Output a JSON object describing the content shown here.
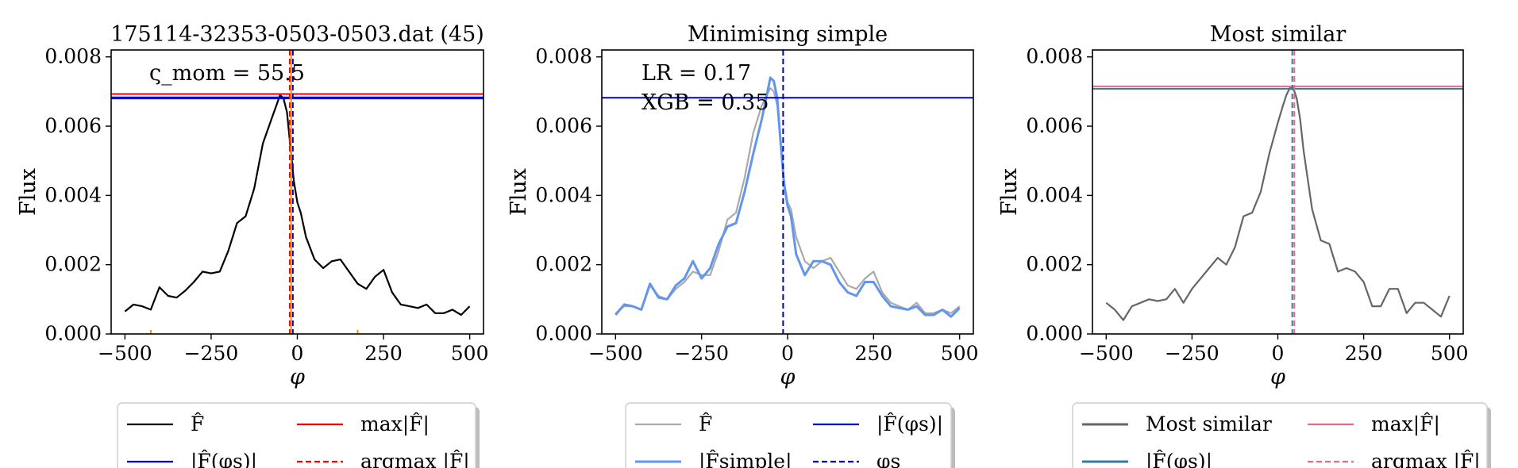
{
  "figure_title": "",
  "chart_data": [
    {
      "type": "line",
      "title": "175114-32353-0503-0503.dat (45)",
      "xlabel": "φ",
      "ylabel": "Flux",
      "xlim": [
        -540,
        540
      ],
      "ylim": [
        0,
        0.0082
      ],
      "xticks": [
        -500,
        -250,
        0,
        250,
        500
      ],
      "xtick_labels": [
        "−500",
        "−250",
        "0",
        "250",
        "500"
      ],
      "yticks": [
        0,
        0.002,
        0.004,
        0.006,
        0.008
      ],
      "ytick_labels": [
        "0.000",
        "0.002",
        "0.004",
        "0.006",
        "0.008"
      ],
      "grid": false,
      "annotation": "ς_mom = 55.5",
      "series": [
        {
          "name": "F̂",
          "color": "#000000",
          "x": [
            -500,
            -475,
            -450,
            -425,
            -400,
            -375,
            -350,
            -325,
            -300,
            -275,
            -250,
            -225,
            -200,
            -175,
            -150,
            -125,
            -100,
            -75,
            -50,
            -40,
            -30,
            -20,
            -10,
            0,
            10,
            25,
            50,
            75,
            100,
            125,
            150,
            175,
            200,
            225,
            250,
            275,
            300,
            325,
            350,
            375,
            400,
            425,
            450,
            475,
            500
          ],
          "y": [
            0.00065,
            0.00085,
            0.0008,
            0.0007,
            0.00135,
            0.0011,
            0.00105,
            0.00125,
            0.0015,
            0.0018,
            0.00175,
            0.0018,
            0.0024,
            0.0032,
            0.0034,
            0.0042,
            0.0055,
            0.0062,
            0.0069,
            0.0068,
            0.0064,
            0.0054,
            0.0044,
            0.0038,
            0.0035,
            0.0028,
            0.00215,
            0.0019,
            0.0021,
            0.00215,
            0.0018,
            0.00145,
            0.0013,
            0.00165,
            0.00185,
            0.0012,
            0.00085,
            0.0008,
            0.00075,
            0.00085,
            0.0006,
            0.0006,
            0.0007,
            0.00055,
            0.0008
          ]
        }
      ],
      "hlines": [
        {
          "name": "max|F̂|",
          "y": 0.00693,
          "color": "#ff0000",
          "style": "solid"
        },
        {
          "name": "|F̂(φs)|",
          "y": 0.0068,
          "color": "#0000cc",
          "style": "solid"
        },
        {
          "name": "",
          "y": 0.00683,
          "color": "#0000cc",
          "style": "solid"
        }
      ],
      "vlines": [
        {
          "name": "argmax|F̂|",
          "x": -22,
          "color": "#ff0000",
          "style": "dashed"
        },
        {
          "name": "φs",
          "x": -13,
          "color": "#0000cc",
          "style": "dashed"
        },
        {
          "name": "",
          "x": -18,
          "color": "#ff8c00",
          "style": "solid"
        }
      ],
      "rug": [
        {
          "x": -425,
          "color": "#ff8c00"
        },
        {
          "x": 175,
          "color": "#ff8c00"
        }
      ],
      "legend": {
        "placement": "below",
        "cols": [
          [
            {
              "label": "F̂",
              "color": "#000000",
              "style": "solid"
            },
            {
              "label": "|F̂(φs)|",
              "color": "#0000cc",
              "style": "solid"
            }
          ],
          [
            {
              "label": "max|F̂|",
              "color": "#ff0000",
              "style": "solid"
            },
            {
              "label": "argmax |F̂|",
              "color": "#ff0000",
              "style": "dashed"
            }
          ]
        ]
      }
    },
    {
      "type": "line",
      "title": "Minimising simple",
      "xlabel": "φ",
      "ylabel": "Flux",
      "xlim": [
        -540,
        540
      ],
      "ylim": [
        0,
        0.0082
      ],
      "xticks": [
        -500,
        -250,
        0,
        250,
        500
      ],
      "xtick_labels": [
        "−500",
        "−250",
        "0",
        "250",
        "500"
      ],
      "yticks": [
        0,
        0.002,
        0.004,
        0.006,
        0.008
      ],
      "ytick_labels": [
        "0.000",
        "0.002",
        "0.004",
        "0.006",
        "0.008"
      ],
      "grid": false,
      "annotation": "LR = 0.17",
      "annotation2": "XGB = 0.35",
      "series": [
        {
          "name": "F̂",
          "color": "#aaaaaa",
          "x": [
            -500,
            -475,
            -450,
            -425,
            -400,
            -375,
            -350,
            -325,
            -300,
            -275,
            -250,
            -225,
            -200,
            -175,
            -150,
            -125,
            -100,
            -75,
            -50,
            -40,
            -30,
            -20,
            -10,
            0,
            10,
            25,
            50,
            75,
            100,
            125,
            150,
            175,
            200,
            225,
            250,
            275,
            300,
            325,
            350,
            375,
            400,
            425,
            450,
            475,
            500
          ],
          "y": [
            0.0006,
            0.0008,
            0.0008,
            0.0007,
            0.0014,
            0.0011,
            0.001,
            0.0013,
            0.0015,
            0.0018,
            0.0017,
            0.0017,
            0.0024,
            0.0033,
            0.0035,
            0.0045,
            0.0058,
            0.0066,
            0.0071,
            0.007,
            0.0066,
            0.0055,
            0.0044,
            0.0038,
            0.0036,
            0.0028,
            0.0021,
            0.0019,
            0.0021,
            0.0022,
            0.0018,
            0.0014,
            0.0013,
            0.0016,
            0.0018,
            0.0012,
            0.0009,
            0.0008,
            0.0007,
            0.0009,
            0.0006,
            0.0006,
            0.0007,
            0.0006,
            0.0008
          ]
        },
        {
          "name": "|F̂simple|",
          "color": "#6495ed",
          "x": [
            -500,
            -475,
            -450,
            -425,
            -400,
            -375,
            -350,
            -325,
            -300,
            -275,
            -250,
            -225,
            -200,
            -175,
            -150,
            -125,
            -100,
            -75,
            -50,
            -40,
            -30,
            -20,
            -10,
            0,
            10,
            25,
            50,
            75,
            100,
            125,
            150,
            175,
            200,
            225,
            250,
            275,
            300,
            325,
            350,
            375,
            400,
            425,
            450,
            475,
            500
          ],
          "y": [
            0.00055,
            0.00085,
            0.0008,
            0.0007,
            0.00145,
            0.00105,
            0.001,
            0.0014,
            0.0016,
            0.0021,
            0.0016,
            0.0019,
            0.0026,
            0.0031,
            0.0032,
            0.0041,
            0.0052,
            0.0062,
            0.0074,
            0.0073,
            0.0068,
            0.0055,
            0.0043,
            0.0037,
            0.0034,
            0.0023,
            0.0017,
            0.0021,
            0.0021,
            0.002,
            0.0015,
            0.0012,
            0.0011,
            0.0015,
            0.0015,
            0.0011,
            0.0008,
            0.00075,
            0.0007,
            0.0008,
            0.00055,
            0.00055,
            0.0007,
            0.0005,
            0.00075
          ]
        }
      ],
      "hlines": [
        {
          "name": "|F̂(φs)|",
          "y": 0.00682,
          "color": "#0000cc",
          "style": "solid"
        }
      ],
      "vlines": [
        {
          "name": "φs",
          "x": -13,
          "color": "#0000cc",
          "style": "dashed"
        }
      ],
      "rug": [],
      "legend": {
        "placement": "below",
        "cols": [
          [
            {
              "label": "F̂",
              "color": "#aaaaaa",
              "style": "solid"
            },
            {
              "label": "|F̂simple|",
              "color": "#6495ed",
              "style": "solid"
            }
          ],
          [
            {
              "label": "|F̂(φs)|",
              "color": "#0000cc",
              "style": "solid"
            },
            {
              "label": "φs",
              "color": "#0000cc",
              "style": "dashed"
            }
          ]
        ]
      }
    },
    {
      "type": "line",
      "title": "Most similar",
      "xlabel": "φ",
      "ylabel": "Flux",
      "xlim": [
        -540,
        540
      ],
      "ylim": [
        0,
        0.0082
      ],
      "xticks": [
        -500,
        -250,
        0,
        250,
        500
      ],
      "xtick_labels": [
        "−500",
        "−250",
        "0",
        "250",
        "500"
      ],
      "yticks": [
        0,
        0.002,
        0.004,
        0.006,
        0.008
      ],
      "ytick_labels": [
        "0.000",
        "0.002",
        "0.004",
        "0.006",
        "0.008"
      ],
      "grid": false,
      "series": [
        {
          "name": "Most similar",
          "color": "#666666",
          "x": [
            -500,
            -475,
            -450,
            -425,
            -400,
            -375,
            -350,
            -325,
            -300,
            -275,
            -250,
            -225,
            -200,
            -175,
            -150,
            -125,
            -100,
            -75,
            -50,
            -25,
            0,
            15,
            25,
            35,
            45,
            55,
            65,
            75,
            100,
            125,
            150,
            175,
            200,
            225,
            250,
            275,
            300,
            325,
            350,
            375,
            400,
            425,
            450,
            475,
            500
          ],
          "y": [
            0.0009,
            0.0007,
            0.0004,
            0.0008,
            0.0009,
            0.001,
            0.00095,
            0.001,
            0.0013,
            0.0009,
            0.0013,
            0.0016,
            0.0019,
            0.0022,
            0.002,
            0.0025,
            0.0034,
            0.0035,
            0.0041,
            0.0052,
            0.0061,
            0.0066,
            0.0069,
            0.0071,
            0.0071,
            0.0068,
            0.0062,
            0.0053,
            0.0036,
            0.0027,
            0.0026,
            0.0018,
            0.0019,
            0.0018,
            0.0015,
            0.0008,
            0.0008,
            0.0013,
            0.0013,
            0.0006,
            0.0009,
            0.0009,
            0.0007,
            0.0005,
            0.0011
          ]
        }
      ],
      "hlines": [
        {
          "name": "max|F̂|",
          "y": 0.00715,
          "color": "#e06c8c",
          "style": "solid"
        },
        {
          "name": "|F̂(φs)|",
          "y": 0.00708,
          "color": "#3a7a9a",
          "style": "solid"
        }
      ],
      "vlines": [
        {
          "name": "argmax |F̂|",
          "x": 48,
          "color": "#e06c8c",
          "style": "dashed"
        },
        {
          "name": "",
          "x": 42,
          "color": "#3a7a9a",
          "style": "dashed"
        }
      ],
      "rug": [],
      "legend": {
        "placement": "below",
        "cols": [
          [
            {
              "label": "Most similar",
              "color": "#666666",
              "style": "solid"
            },
            {
              "label": "|F̂(φs)|",
              "color": "#3a7a9a",
              "style": "solid"
            }
          ],
          [
            {
              "label": "max|F̂|",
              "color": "#e06c8c",
              "style": "solid"
            },
            {
              "label": "argmax |F̂|",
              "color": "#e06c8c",
              "style": "dashed"
            }
          ]
        ]
      }
    }
  ]
}
